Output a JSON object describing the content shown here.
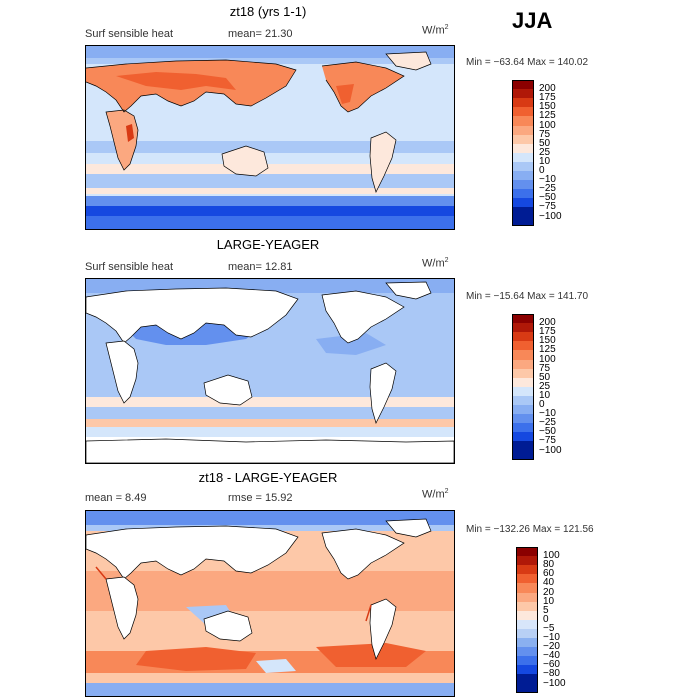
{
  "season": "JJA",
  "units": "W/m",
  "units_exp": "2",
  "panels": [
    {
      "title": "zt18 (yrs 1-1)",
      "variable": "Surf sensible heat",
      "stat1": "mean=  21.30",
      "stat2": "",
      "minmax": "Min = −63.64  Max = 140.02",
      "levels": [
        "200",
        "175",
        "150",
        "125",
        "100",
        "75",
        "50",
        "25",
        "10",
        "0",
        "−10",
        "−25",
        "−50",
        "−75",
        "−100"
      ],
      "colors": [
        "#8b0000",
        "#b01808",
        "#d83a14",
        "#f06030",
        "#f88858",
        "#fba880",
        "#fdc8a8",
        "#fde8dc",
        "#d4e6fb",
        "#aac8f6",
        "#88aef2",
        "#6390ee",
        "#3c70eb",
        "#1548e0",
        "#001c94"
      ]
    },
    {
      "title": "LARGE-YEAGER",
      "variable": "Surf sensible heat",
      "stat1": "mean=  12.81",
      "stat2": "",
      "minmax": "Min = −15.64  Max = 141.70",
      "levels": [
        "200",
        "175",
        "150",
        "125",
        "100",
        "75",
        "50",
        "25",
        "10",
        "0",
        "−10",
        "−25",
        "−50",
        "−75",
        "−100"
      ],
      "colors": [
        "#8b0000",
        "#b01808",
        "#d83a14",
        "#f06030",
        "#f88858",
        "#fba880",
        "#fdc8a8",
        "#fde8dc",
        "#d4e6fb",
        "#aac8f6",
        "#88aef2",
        "#6390ee",
        "#3c70eb",
        "#1548e0",
        "#001c94"
      ]
    },
    {
      "title": "zt18 - LARGE-YEAGER",
      "variable": "",
      "stat1": "mean =    8.49",
      "stat2": "rmse =    15.92",
      "minmax": "Min = −132.26  Max = 121.56",
      "levels": [
        "100",
        "80",
        "60",
        "40",
        "20",
        "10",
        "5",
        "0",
        "−5",
        "−10",
        "−20",
        "−40",
        "−60",
        "−80",
        "−100"
      ],
      "colors": [
        "#8b0000",
        "#b01808",
        "#d83a14",
        "#f06030",
        "#f88858",
        "#fba880",
        "#fdc8a8",
        "#fde8dc",
        "#d8e6fa",
        "#b8d0f5",
        "#8ab0f0",
        "#6390ee",
        "#3c70eb",
        "#1548e0",
        "#001c94"
      ]
    }
  ]
}
